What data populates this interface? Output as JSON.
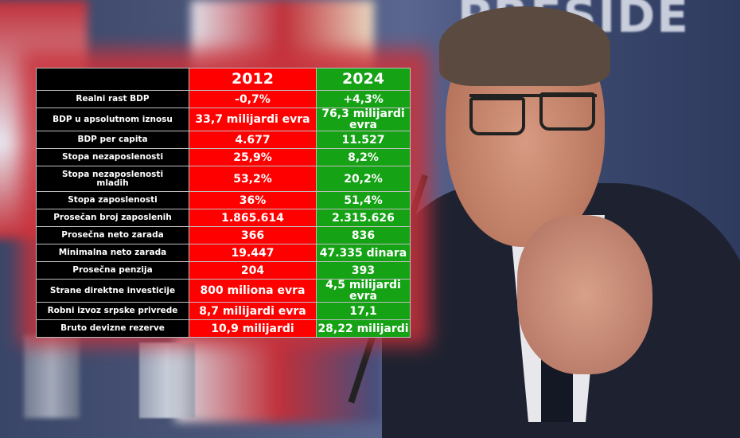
{
  "background": {
    "sign_text": "PRESIDE",
    "colors": {
      "red_column": "#ff0000",
      "green_column": "#15a215",
      "label_column": "#000000"
    }
  },
  "table": {
    "headers": [
      "",
      "2012",
      "2024"
    ],
    "rows": [
      {
        "label": "Realni rast BDP",
        "y2012": "-0,7%",
        "y2024": "+4,3%"
      },
      {
        "label": "BDP u apsolutnom iznosu",
        "y2012": "33,7 milijardi evra",
        "y2024": "76,3 milijardi evra"
      },
      {
        "label": "BDP per capita",
        "y2012": "4.677",
        "y2024": "11.527"
      },
      {
        "label": "Stopa nezaposlenosti",
        "y2012": "25,9%",
        "y2024": "8,2%"
      },
      {
        "label": "Stopa nezaposlenosti mladih",
        "y2012": "53,2%",
        "y2024": "20,2%"
      },
      {
        "label": "Stopa zaposlenosti",
        "y2012": "36%",
        "y2024": "51,4%"
      },
      {
        "label": "Prosečan broj zaposlenih",
        "y2012": "1.865.614",
        "y2024": "2.315.626"
      },
      {
        "label": "Prosečna neto zarada",
        "y2012": "366",
        "y2024": "836"
      },
      {
        "label": "Minimalna neto zarada",
        "y2012": "19.447",
        "y2024": "47.335 dinara"
      },
      {
        "label": "Prosečna penzija",
        "y2012": "204",
        "y2024": "393"
      },
      {
        "label": "Strane direktne investicije",
        "y2012": "800 miliona evra",
        "y2024": "4,5 milijardi evra"
      },
      {
        "label": "Robni izvoz srpske privrede",
        "y2012": "8,7 milijardi evra",
        "y2024": "17,1"
      },
      {
        "label": "Bruto devizne rezerve",
        "y2012": "10,9 milijardi",
        "y2024": "28,22 milijardi"
      }
    ]
  }
}
